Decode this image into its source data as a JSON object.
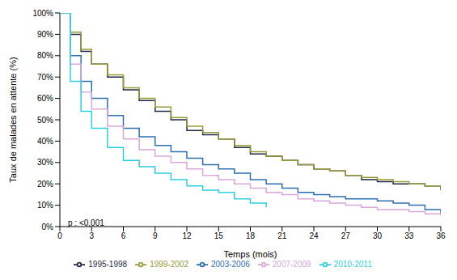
{
  "chart_data": {
    "type": "line",
    "x_label": "Temps (mois)",
    "y_label": "Taux de malades en attente (%)",
    "annotation": "p : <0,001",
    "x": [
      0,
      1,
      2,
      3,
      4.5,
      6,
      7.5,
      9,
      10.5,
      12,
      13.5,
      15,
      16.5,
      18,
      19.5,
      21,
      22.5,
      24,
      25.5,
      27,
      28.5,
      30,
      31.5,
      33,
      34.5,
      36
    ],
    "series": [
      {
        "name": "1995-1998",
        "color": "#1f2a44",
        "values": [
          100,
          90,
          82,
          76,
          70,
          64,
          59,
          54,
          50,
          45,
          43,
          41,
          37,
          34,
          33,
          31,
          29,
          27,
          26,
          24,
          22,
          21,
          20,
          20,
          19,
          17
        ]
      },
      {
        "name": "1999-2002",
        "color": "#9a9a3a",
        "values": [
          100,
          91,
          83,
          76,
          71,
          65,
          60,
          56,
          51,
          47,
          44,
          41,
          38,
          35,
          33,
          31,
          29,
          27,
          26,
          24,
          23,
          22,
          21,
          20,
          19,
          17
        ]
      },
      {
        "name": "2003-2006",
        "color": "#2f6fb0",
        "values": [
          100,
          80,
          68,
          60,
          52,
          46,
          42,
          38,
          35,
          32,
          29,
          27,
          25,
          22,
          20,
          18,
          16,
          15,
          14,
          13,
          13,
          12,
          11,
          10,
          8,
          6
        ]
      },
      {
        "name": "2007-2009",
        "color": "#d8a8d8",
        "values": [
          100,
          76,
          63,
          55,
          47,
          41,
          36,
          33,
          30,
          27,
          24,
          22,
          20,
          18,
          16,
          15,
          13,
          12,
          11,
          10,
          9,
          8,
          8,
          7,
          6,
          5
        ]
      },
      {
        "name": "2010-2011",
        "color": "#2fd0e0",
        "values": [
          100,
          68,
          54,
          46,
          37,
          31,
          28,
          25,
          22,
          19,
          17,
          16,
          13,
          11,
          9,
          null,
          null,
          null,
          null,
          null,
          null,
          null,
          null,
          null,
          null,
          null
        ]
      }
    ],
    "xlim": [
      0,
      36
    ],
    "xticks": [
      0,
      3,
      6,
      9,
      12,
      15,
      18,
      21,
      24,
      27,
      30,
      33,
      36
    ],
    "ylim": [
      0,
      100
    ],
    "yticks": [
      {
        "value": 0,
        "label": "0%"
      },
      {
        "value": 10,
        "label": "10%"
      },
      {
        "value": 20,
        "label": "20%"
      },
      {
        "value": 30,
        "label": "30%"
      },
      {
        "value": 40,
        "label": "40%"
      },
      {
        "value": 50,
        "label": "50%"
      },
      {
        "value": 60,
        "label": "60%"
      },
      {
        "value": 70,
        "label": "70%"
      },
      {
        "value": 80,
        "label": "80%"
      },
      {
        "value": 90,
        "label": "90%"
      },
      {
        "value": 100,
        "label": "100%"
      }
    ],
    "grid": false,
    "legend": "bottom"
  }
}
